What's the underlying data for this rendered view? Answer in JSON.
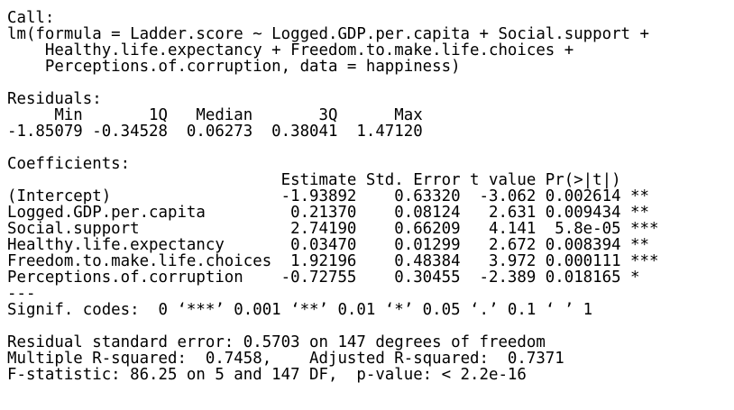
{
  "text_color": "#000000",
  "background_color": "#ffffff",
  "call": {
    "label": "Call:",
    "lines": [
      "lm(formula = Ladder.score ~ Logged.GDP.per.capita + Social.support +",
      "    Healthy.life.expectancy + Freedom.to.make.life.choices +",
      "    Perceptions.of.corruption, data = happiness)"
    ]
  },
  "residuals": {
    "label": "Residuals:",
    "header": "     Min       1Q   Median       3Q      Max ",
    "values": "-1.85079 -0.34528  0.06273  0.38041  1.47120 "
  },
  "coefficients": {
    "label": "Coefficients:",
    "header": "                             Estimate Std. Error t value Pr(>|t|)    ",
    "rows": [
      "(Intercept)                  -1.93892    0.63320  -3.062 0.002614 ** ",
      "Logged.GDP.per.capita         0.21370    0.08124   2.631 0.009434 ** ",
      "Social.support                2.74190    0.66209   4.141  5.8e-05 ***",
      "Healthy.life.expectancy       0.03470    0.01299   2.672 0.008394 ** ",
      "Freedom.to.make.life.choices  1.92196    0.48384   3.972 0.000111 ***",
      "Perceptions.of.corruption    -0.72755    0.30455  -2.389 0.018165 *  "
    ],
    "separator": "---",
    "signif": "Signif. codes:  0 ‘***’ 0.001 ‘**’ 0.01 ‘*’ 0.05 ‘.’ 0.1 ‘ ’ 1"
  },
  "summary": {
    "lines": [
      "Residual standard error: 0.5703 on 147 degrees of freedom",
      "Multiple R-squared:  0.7458,\tAdjusted R-squared:  0.7371 ",
      "F-statistic: 86.25 on 5 and 147 DF,  p-value: < 2.2e-16"
    ]
  }
}
